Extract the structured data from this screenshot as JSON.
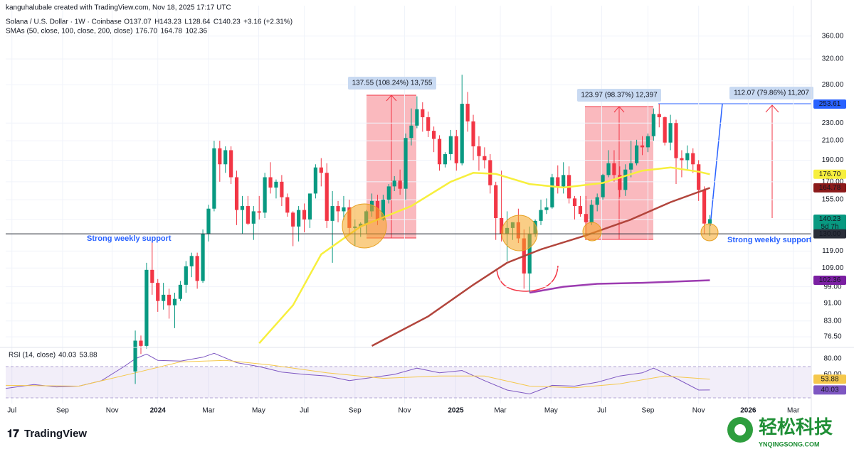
{
  "chart_data": {
    "type": "candlestick",
    "header": "kanguhalubale created with TradingView.com, Nov 18, 2025 17:17 UTC",
    "symbol": "Solana / U.S. Dollar · 1W · Coinbase",
    "ohlc": [
      "O137.07",
      "H143.23",
      "L128.64",
      "C140.23",
      "+3.16 (+2.31%)"
    ],
    "sma_legend": "SMAs (50, close, 100, close, 200, close)",
    "rsi_legend": "RSI (14, close)",
    "up_color": "#089981",
    "down_color": "#f23645",
    "log_scale": true,
    "ylim": [
      72.7,
      421
    ],
    "yticks": [
      {
        "value": 360,
        "label": "360.00"
      },
      {
        "value": 320,
        "label": "320.00"
      },
      {
        "value": 280,
        "label": "280.00"
      },
      {
        "value": 230,
        "label": "230.00"
      },
      {
        "value": 210,
        "label": "210.00"
      },
      {
        "value": 190,
        "label": "190.00"
      },
      {
        "value": 170,
        "label": "170.00"
      },
      {
        "value": 155,
        "label": "155.00"
      },
      {
        "value": 140,
        "label": "140.00"
      },
      {
        "value": 119,
        "label": "119.00"
      },
      {
        "value": 109,
        "label": "109.00"
      },
      {
        "value": 99,
        "label": "99.00"
      },
      {
        "value": 91,
        "label": "91.00"
      },
      {
        "value": 83,
        "label": "83.00"
      },
      {
        "value": 76.5,
        "label": "76.50"
      }
    ],
    "xlim": [
      -23,
      120
    ],
    "xticks": [
      {
        "value": -21.9,
        "label": "Jul"
      },
      {
        "value": -12.9,
        "label": "Sep"
      },
      {
        "value": -4.1,
        "label": "Nov"
      },
      {
        "value": 4,
        "label": "2024"
      },
      {
        "value": 13,
        "label": "Mar"
      },
      {
        "value": 21.9,
        "label": "May"
      },
      {
        "value": 30,
        "label": "Jul"
      },
      {
        "value": 39,
        "label": "Sep"
      },
      {
        "value": 47.8,
        "label": "Nov"
      },
      {
        "value": 56.9,
        "label": "2025"
      },
      {
        "value": 64.8,
        "label": "Mar"
      },
      {
        "value": 73.8,
        "label": "May"
      },
      {
        "value": 82.8,
        "label": "Jul"
      },
      {
        "value": 91,
        "label": "Sep"
      },
      {
        "value": 100,
        "label": "Nov"
      },
      {
        "value": 108.8,
        "label": "2026"
      },
      {
        "value": 116.8,
        "label": "Mar"
      }
    ],
    "candles": [
      [
        64,
        79,
        60,
        75
      ],
      [
        75,
        77,
        70,
        73
      ],
      [
        73,
        112,
        72,
        108
      ],
      [
        108,
        126,
        95,
        101
      ],
      [
        101,
        103,
        87,
        92
      ],
      [
        92,
        101,
        88,
        95
      ],
      [
        95,
        98,
        84,
        90
      ],
      [
        90,
        96,
        80,
        93
      ],
      [
        93,
        102,
        92,
        100
      ],
      [
        100,
        113,
        96,
        110
      ],
      [
        110,
        118,
        104,
        116
      ],
      [
        116,
        118,
        98,
        102
      ],
      [
        102,
        133,
        101,
        130
      ],
      [
        130,
        151,
        125,
        148
      ],
      [
        148,
        210,
        146,
        202
      ],
      [
        202,
        210,
        170,
        186
      ],
      [
        186,
        204,
        178,
        200
      ],
      [
        200,
        204,
        168,
        174
      ],
      [
        174,
        180,
        136,
        147
      ],
      [
        147,
        158,
        130,
        150
      ],
      [
        150,
        158,
        136,
        137
      ],
      [
        137,
        150,
        126,
        146
      ],
      [
        146,
        158,
        140,
        145
      ],
      [
        145,
        178,
        141,
        174
      ],
      [
        174,
        188,
        160,
        165
      ],
      [
        165,
        172,
        156,
        170
      ],
      [
        170,
        176,
        150,
        157
      ],
      [
        157,
        160,
        142,
        145
      ],
      [
        145,
        146,
        122,
        135
      ],
      [
        135,
        150,
        125,
        147
      ],
      [
        147,
        152,
        131,
        140
      ],
      [
        140,
        160,
        134,
        160
      ],
      [
        160,
        186,
        156,
        183
      ],
      [
        183,
        192,
        166,
        178
      ],
      [
        178,
        187,
        134,
        139
      ],
      [
        139,
        162,
        112,
        150
      ],
      [
        150,
        154,
        138,
        146
      ],
      [
        146,
        158,
        140,
        149
      ],
      [
        149,
        155,
        130,
        134
      ],
      [
        134,
        140,
        122,
        135
      ],
      [
        135,
        138,
        128,
        137
      ],
      [
        137,
        147,
        130,
        146
      ],
      [
        146,
        160,
        142,
        154
      ],
      [
        154,
        159,
        136,
        140
      ],
      [
        140,
        159,
        139,
        155
      ],
      [
        155,
        168,
        152,
        166
      ],
      [
        166,
        175,
        162,
        171
      ],
      [
        171,
        181,
        159,
        164
      ],
      [
        164,
        218,
        155,
        213
      ],
      [
        213,
        248,
        205,
        227
      ],
      [
        227,
        264,
        224,
        247
      ],
      [
        247,
        256,
        220,
        237
      ],
      [
        237,
        244,
        214,
        221
      ],
      [
        221,
        226,
        198,
        212
      ],
      [
        212,
        216,
        180,
        186
      ],
      [
        186,
        198,
        183,
        196
      ],
      [
        196,
        222,
        190,
        215
      ],
      [
        215,
        222,
        180,
        187
      ],
      [
        187,
        295,
        185,
        254
      ],
      [
        254,
        270,
        220,
        232
      ],
      [
        232,
        240,
        190,
        204
      ],
      [
        204,
        215,
        180,
        194
      ],
      [
        194,
        203,
        182,
        190
      ],
      [
        190,
        196,
        160,
        167
      ],
      [
        167,
        170,
        126,
        141
      ],
      [
        141,
        180,
        125,
        130
      ],
      [
        130,
        146,
        113,
        134
      ],
      [
        134,
        138,
        126,
        138
      ],
      [
        138,
        148,
        124,
        127
      ],
      [
        127,
        133,
        98,
        106
      ],
      [
        106,
        135,
        96,
        130
      ],
      [
        130,
        140,
        128,
        139
      ],
      [
        139,
        155,
        136,
        147
      ],
      [
        147,
        156,
        144,
        149
      ],
      [
        149,
        177,
        148,
        174
      ],
      [
        174,
        185,
        160,
        166
      ],
      [
        166,
        188,
        160,
        176
      ],
      [
        176,
        184,
        152,
        156
      ],
      [
        156,
        158,
        140,
        150
      ],
      [
        150,
        158,
        142,
        144
      ],
      [
        144,
        158,
        128,
        138
      ],
      [
        138,
        155,
        136,
        151
      ],
      [
        151,
        160,
        146,
        157
      ],
      [
        157,
        177,
        155,
        176
      ],
      [
        176,
        200,
        174,
        187
      ],
      [
        187,
        200,
        170,
        176
      ],
      [
        176,
        184,
        157,
        163
      ],
      [
        163,
        186,
        158,
        181
      ],
      [
        181,
        210,
        174,
        187
      ],
      [
        187,
        211,
        185,
        205
      ],
      [
        205,
        215,
        195,
        203
      ],
      [
        203,
        218,
        198,
        215
      ],
      [
        215,
        248,
        210,
        241
      ],
      [
        241,
        254,
        225,
        237
      ],
      [
        237,
        238,
        205,
        208
      ],
      [
        208,
        240,
        200,
        230
      ],
      [
        230,
        234,
        168,
        192
      ],
      [
        192,
        200,
        174,
        190
      ],
      [
        190,
        205,
        180,
        197
      ],
      [
        197,
        202,
        178,
        186
      ],
      [
        186,
        190,
        154,
        163
      ],
      [
        163,
        166,
        130,
        137.07
      ],
      [
        137.07,
        143.23,
        128.64,
        140.23
      ]
    ],
    "series": [
      {
        "name": "176.70",
        "color": "#f7ef3d",
        "x": [
          22,
          28,
          33,
          40,
          49,
          56,
          60,
          64,
          70,
          76,
          83,
          90,
          95,
          100,
          102
        ],
        "values": [
          74,
          90,
          117,
          135,
          150,
          170,
          178,
          177,
          168,
          165,
          169,
          180,
          183,
          179,
          176.7
        ]
      },
      {
        "name": "164.78",
        "color": "#b2453c",
        "x": [
          42,
          52,
          60,
          66,
          72,
          80,
          88,
          95,
          102
        ],
        "values": [
          73,
          85,
          100,
          112,
          120,
          129,
          140,
          153,
          164.78
        ]
      },
      {
        "name": "102.36",
        "color": "#9c3bb0",
        "x": [
          70,
          76,
          82,
          90,
          102
        ],
        "values": [
          96,
          99,
          100.5,
          101,
          102.36
        ]
      }
    ],
    "price_labels": [
      {
        "value": 253.61,
        "label": "253.61",
        "color": "#2962ff"
      },
      {
        "value": 176.7,
        "label": "176.70",
        "color": "#f7ef3d"
      },
      {
        "value": 164.78,
        "label": "164.78",
        "color": "#8b1a1a"
      },
      {
        "value": 140.23,
        "label": "140.23",
        "color": "#089981"
      },
      {
        "value": 130,
        "label": "130.00",
        "color": "#2a2e39"
      },
      {
        "value": 102.36,
        "label": "102.36",
        "color": "#7b1fa2"
      }
    ],
    "countdown": "5d 7h",
    "annotations": [
      "137.55 (108.24%) 13,755",
      "123.97 (98.37%) 12,397",
      "112.07 (79.86%) 11,207",
      "Strong weekly support",
      "Strong weekly support"
    ],
    "rsi": {
      "ylim": [
        22.7,
        93.6
      ],
      "yticks": [
        {
          "value": 80,
          "label": "80.00"
        },
        {
          "value": 60,
          "label": "60.00"
        }
      ],
      "band": [
        30,
        70
      ],
      "series": [
        {
          "name": "40.03",
          "color": "#7e57c2",
          "x": [
            -23,
            -18,
            -14,
            -10,
            -6,
            -2,
            0,
            2,
            4,
            8,
            12,
            14,
            18,
            22,
            26,
            30,
            34,
            38,
            42,
            46,
            50,
            54,
            58,
            62,
            66,
            70,
            74,
            78,
            82,
            86,
            90,
            92,
            96,
            100,
            102
          ],
          "values": [
            42,
            47,
            44,
            45,
            52,
            70,
            80,
            86,
            78,
            77,
            82,
            87,
            75,
            70,
            63,
            60,
            58,
            52,
            56,
            60,
            68,
            62,
            65,
            52,
            40,
            35,
            46,
            45,
            50,
            58,
            62,
            68,
            55,
            40,
            40.03
          ]
        },
        {
          "name": "53.88",
          "color": "#f5c84c",
          "x": [
            -23,
            -10,
            0,
            8,
            16,
            24,
            34,
            44,
            54,
            62,
            70,
            78,
            86,
            94,
            102
          ],
          "values": [
            46,
            45,
            62,
            76,
            78,
            72,
            62,
            55,
            58,
            58,
            45,
            43,
            48,
            58,
            53.88
          ]
        }
      ]
    },
    "brand": "TradingView",
    "watermark": [
      "轻松科技",
      "YNQINGSONG.COM"
    ]
  }
}
